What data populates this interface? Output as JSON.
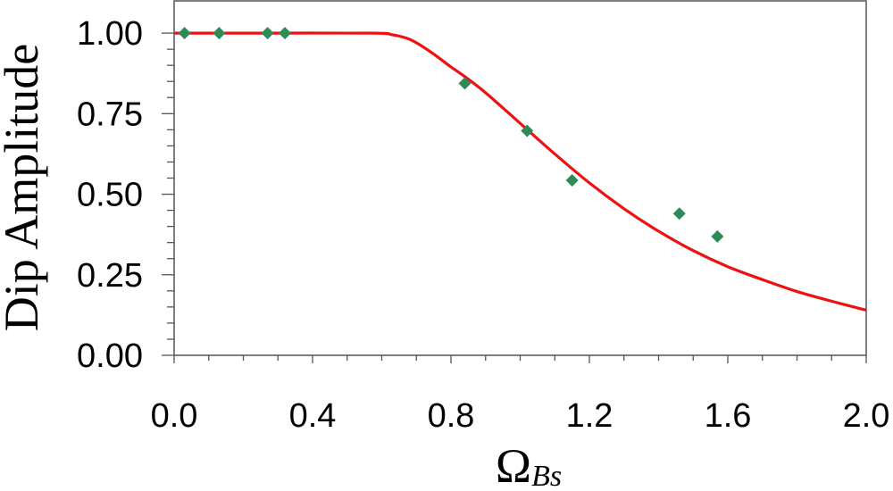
{
  "chart_data": {
    "type": "scatter",
    "xlabel": "Ω",
    "xlabel_subscript": "Bs",
    "ylabel": "Dip Amplitude",
    "xlim": [
      0.0,
      2.0
    ],
    "ylim": [
      0.0,
      1.1
    ],
    "x_ticks": [
      "0.0",
      "0.4",
      "0.8",
      "1.2",
      "1.6",
      "2.0"
    ],
    "y_ticks": [
      "0.00",
      "0.25",
      "0.50",
      "0.75",
      "1.00"
    ],
    "grid": false,
    "series": [
      {
        "kind": "points",
        "marker": "diamond",
        "color": "#2e8b57",
        "x": [
          0.03,
          0.13,
          0.27,
          0.32,
          0.84,
          1.02,
          1.15,
          1.46,
          1.57
        ],
        "y": [
          1.0,
          1.0,
          1.0,
          1.0,
          0.844,
          0.697,
          0.543,
          0.44,
          0.369
        ]
      },
      {
        "kind": "line",
        "color": "#ee1111",
        "x": [
          0.0,
          0.3,
          0.58,
          0.63,
          0.67,
          0.7,
          0.75,
          0.8,
          0.84,
          0.9,
          1.0,
          1.1,
          1.2,
          1.3,
          1.4,
          1.5,
          1.6,
          1.7,
          1.8,
          1.9,
          2.0
        ],
        "y": [
          1.0,
          1.0,
          1.0,
          0.995,
          0.985,
          0.97,
          0.935,
          0.895,
          0.865,
          0.815,
          0.72,
          0.625,
          0.535,
          0.455,
          0.385,
          0.325,
          0.275,
          0.235,
          0.198,
          0.168,
          0.14
        ]
      }
    ]
  }
}
